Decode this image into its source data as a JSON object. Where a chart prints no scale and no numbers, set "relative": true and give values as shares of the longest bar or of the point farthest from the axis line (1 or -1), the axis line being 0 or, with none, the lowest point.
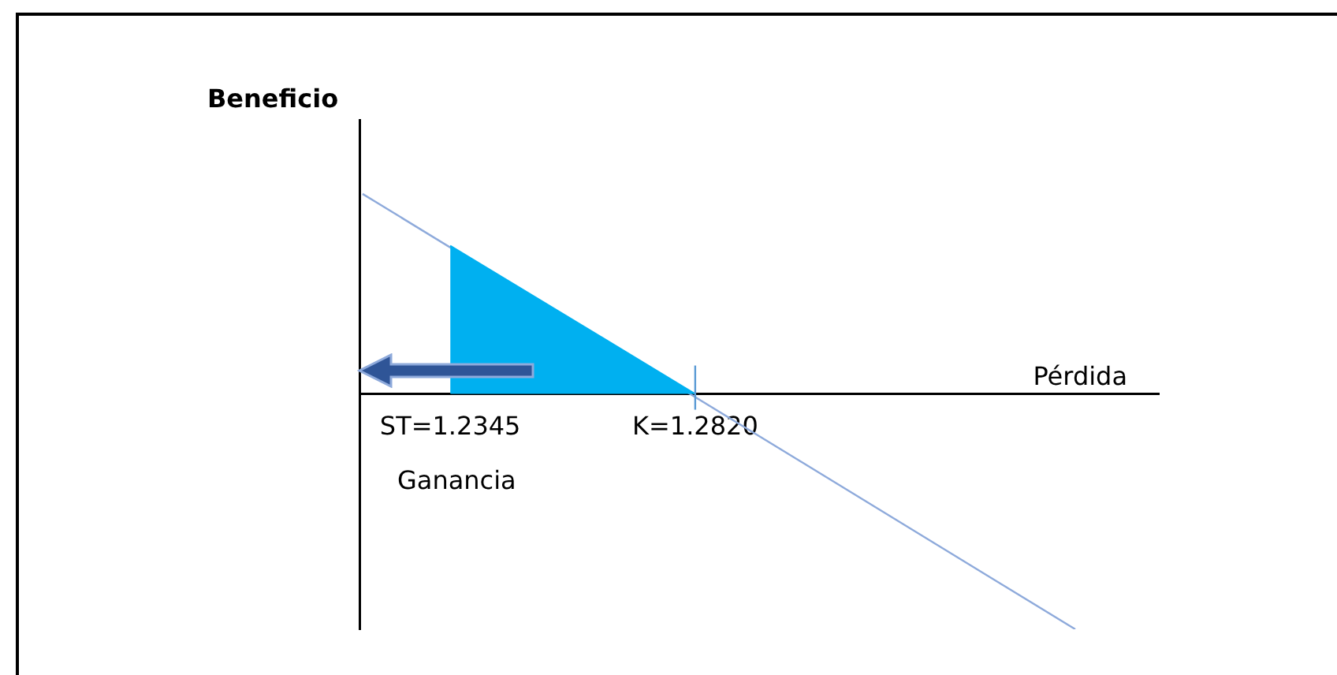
{
  "chart_data": {
    "type": "line",
    "relative": true,
    "xlabel": "Pérdida",
    "ylabel": "Beneficio",
    "xlim": [
      1.2169,
      1.3719
    ],
    "xticks": [
      {
        "value": 1.2345,
        "label": "ST=1.2345"
      },
      {
        "value": 1.282,
        "label": "K=1.2820"
      }
    ],
    "tick_labels": "x",
    "grid": false,
    "legend": false,
    "marker": "none",
    "line_style": "solid",
    "series": [
      {
        "type": "area",
        "color": "#00b0f0",
        "x": [
          1.2345,
          1.282
        ],
        "values": [
          0.63,
          0
        ]
      },
      {
        "color": "#8eaadb",
        "x": [
          1.2175,
          1.3557
        ],
        "values": [
          0.85,
          -1
        ]
      }
    ],
    "ref_lines": [
      {
        "axis": "x",
        "value": 1.282,
        "color": "#5b9bd5"
      }
    ],
    "annotations": [
      "Ganancia"
    ]
  }
}
